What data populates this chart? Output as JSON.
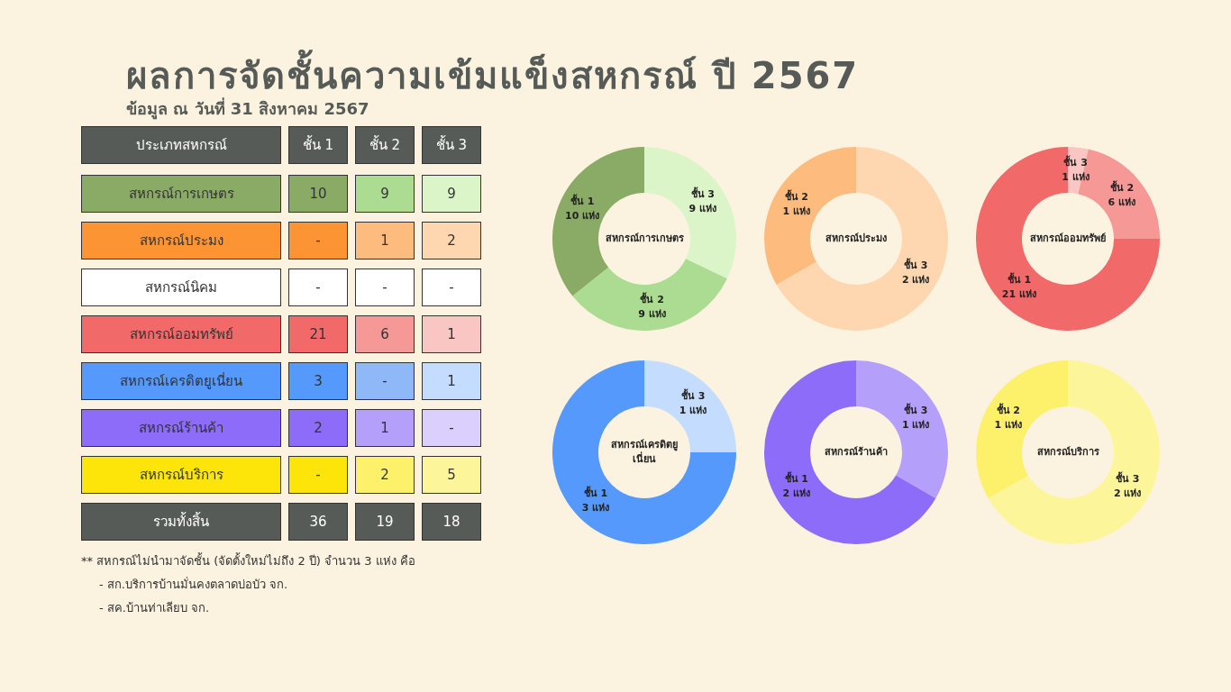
{
  "chart_data": [
    {
      "type": "heatmap",
      "title": "ผลการจัดชั้นความเข้มแข็งสหกรณ์ ปี 2567",
      "subtitle": "ข้อมูล ณ วันที่ 31 สิงหาคม 2567",
      "ylabel": "ประเภทสหกรณ์",
      "categories": [
        "ชั้น 1",
        "ชั้น 2",
        "ชั้น 3"
      ],
      "y_categories": [
        "สหกรณ์การเกษตร",
        "สหกรณ์ประมง",
        "สหกรณ์นิคม",
        "สหกรณ์ออมทรัพย์",
        "สหกรณ์เครดิตยูเนี่ยน",
        "สหกรณ์ร้านค้า",
        "สหกรณ์บริการ",
        "รวมทั้งสิ้น"
      ],
      "cells": [
        [
          10,
          9,
          9
        ],
        [
          null,
          1,
          2
        ],
        [
          null,
          null,
          null
        ],
        [
          21,
          6,
          1
        ],
        [
          3,
          null,
          1
        ],
        [
          2,
          1,
          null
        ],
        [
          null,
          2,
          5
        ],
        [
          36,
          19,
          18
        ]
      ],
      "cell_labels": [
        [
          "10",
          "9",
          "9"
        ],
        [
          "-",
          "1",
          "2"
        ],
        [
          "-",
          "-",
          "-"
        ],
        [
          "21",
          "6",
          "1"
        ],
        [
          "3",
          "-",
          "1"
        ],
        [
          "2",
          "1",
          "-"
        ],
        [
          "-",
          "2",
          "5"
        ],
        [
          "36",
          "19",
          "18"
        ]
      ],
      "colors": [
        [
          "#8aab66",
          "#acdc92",
          "#dcf5c8"
        ],
        [
          "#fd9433",
          "#fdbb7e",
          "#fed6b0"
        ],
        [
          "#ffffff",
          "#ffffff",
          "#ffffff"
        ],
        [
          "#f2696a",
          "#f59896",
          "#f9c6c4"
        ],
        [
          "#5599fc",
          "#8fb8f9",
          "#c4dcfe"
        ],
        [
          "#8c6cf9",
          "#b49ffb",
          "#dacffd"
        ],
        [
          "#fde50a",
          "#fdf06a",
          "#fdf59a"
        ],
        [
          "#565b58",
          "#565b58",
          "#565b58"
        ]
      ],
      "annotations": [
        "** สหกรณ์ไม่นำมาจัดชั้น (จัดตั้งใหม่ไม่ถึง 2 ปี) จำนวน 3 แห่ง คือ",
        "- สก.บริการบ้านมั่นคงตลาดบ่อบัว จก.",
        "- สค.บ้านท่าเลียบ จก."
      ]
    },
    {
      "type": "donut",
      "title": "สหกรณ์การเกษตร",
      "categories": [
        "ชั้น 3",
        "ชั้น 2",
        "ชั้น 1"
      ],
      "values": [
        9,
        9,
        10
      ],
      "colors": [
        "#dcf5c8",
        "#acdc92",
        "#8aab66"
      ],
      "value_labels": [
        "9 แห่ง",
        "9 แห่ง",
        "10 แห่ง"
      ]
    },
    {
      "type": "donut",
      "title": "สหกรณ์ประมง",
      "categories": [
        "ชั้น 3",
        "ชั้น 2"
      ],
      "values": [
        2,
        1
      ],
      "colors": [
        "#fed6b0",
        "#fdbb7e"
      ],
      "value_labels": [
        "2 แห่ง",
        "1 แห่ง"
      ]
    },
    {
      "type": "donut",
      "title": "สหกรณ์ออมทรัพย์",
      "categories": [
        "ชั้น 3",
        "ชั้น 2",
        "ชั้น 1"
      ],
      "values": [
        1,
        6,
        21
      ],
      "colors": [
        "#f9c6c4",
        "#f59896",
        "#f2696a"
      ],
      "value_labels": [
        "1 แห่ง",
        "6 แห่ง",
        "21 แห่ง"
      ]
    },
    {
      "type": "donut",
      "title": "สหกรณ์เครดิตยูเนี่ยน",
      "categories": [
        "ชั้น 3",
        "ชั้น 1"
      ],
      "values": [
        1,
        3
      ],
      "colors": [
        "#c4dcfe",
        "#5599fc"
      ],
      "value_labels": [
        "1 แห่ง",
        "3 แห่ง"
      ]
    },
    {
      "type": "donut",
      "title": "สหกรณ์ร้านค้า",
      "categories": [
        "ชั้น 3",
        "ชั้น 1"
      ],
      "values": [
        1,
        2
      ],
      "colors": [
        "#b49ffb",
        "#8c6cf9"
      ],
      "value_labels": [
        "1 แห่ง",
        "2 แห่ง"
      ]
    },
    {
      "type": "donut",
      "title": "สหกรณ์บริการ",
      "categories": [
        "ชั้น 3",
        "ชั้น 2"
      ],
      "values": [
        2,
        1
      ],
      "colors": [
        "#fdf59a",
        "#fdf06a"
      ],
      "value_labels": [
        "2 แห่ง",
        "1 แห่ง"
      ]
    }
  ]
}
